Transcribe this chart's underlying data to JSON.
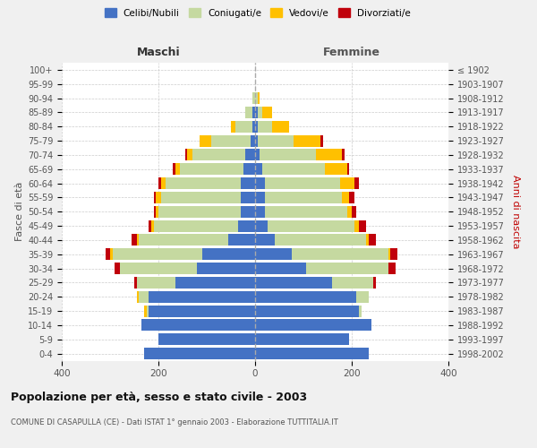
{
  "age_groups": [
    "0-4",
    "5-9",
    "10-14",
    "15-19",
    "20-24",
    "25-29",
    "30-34",
    "35-39",
    "40-44",
    "45-49",
    "50-54",
    "55-59",
    "60-64",
    "65-69",
    "70-74",
    "75-79",
    "80-84",
    "85-89",
    "90-94",
    "95-99",
    "100+"
  ],
  "birth_years": [
    "1998-2002",
    "1993-1997",
    "1988-1992",
    "1983-1987",
    "1978-1982",
    "1973-1977",
    "1968-1972",
    "1963-1967",
    "1958-1962",
    "1953-1957",
    "1948-1952",
    "1943-1947",
    "1938-1942",
    "1933-1937",
    "1928-1932",
    "1923-1927",
    "1918-1922",
    "1913-1917",
    "1908-1912",
    "1903-1907",
    "≤ 1902"
  ],
  "male": {
    "celibi": [
      230,
      200,
      235,
      220,
      220,
      165,
      120,
      110,
      55,
      35,
      30,
      30,
      30,
      25,
      20,
      10,
      5,
      5,
      0,
      0,
      0
    ],
    "coniugati": [
      0,
      0,
      0,
      5,
      20,
      80,
      160,
      185,
      185,
      175,
      170,
      165,
      155,
      130,
      110,
      80,
      35,
      15,
      5,
      0,
      0
    ],
    "vedovi": [
      0,
      0,
      0,
      5,
      5,
      0,
      0,
      5,
      5,
      5,
      5,
      10,
      10,
      10,
      10,
      25,
      10,
      0,
      0,
      0,
      0
    ],
    "divorziati": [
      0,
      0,
      0,
      0,
      0,
      5,
      10,
      10,
      10,
      5,
      5,
      5,
      5,
      5,
      5,
      0,
      0,
      0,
      0,
      0,
      0
    ]
  },
  "female": {
    "nubili": [
      235,
      195,
      240,
      215,
      210,
      160,
      105,
      75,
      40,
      25,
      20,
      20,
      20,
      15,
      10,
      5,
      5,
      5,
      0,
      0,
      0
    ],
    "coniugate": [
      0,
      0,
      0,
      5,
      25,
      85,
      170,
      200,
      190,
      180,
      170,
      160,
      155,
      130,
      115,
      75,
      30,
      10,
      5,
      0,
      0
    ],
    "vedove": [
      0,
      0,
      0,
      0,
      0,
      0,
      0,
      5,
      5,
      10,
      10,
      15,
      30,
      45,
      55,
      55,
      35,
      20,
      5,
      0,
      0
    ],
    "divorziate": [
      0,
      0,
      0,
      0,
      0,
      5,
      15,
      15,
      15,
      15,
      10,
      10,
      10,
      5,
      5,
      5,
      0,
      0,
      0,
      0,
      0
    ]
  },
  "colors": {
    "celibi": "#4472c4",
    "coniugati": "#c5d9a0",
    "vedovi": "#ffc000",
    "divorziati": "#c0000b"
  },
  "xlim": 400,
  "title": "Popolazione per età, sesso e stato civile - 2003",
  "subtitle": "COMUNE DI CASAPULLA (CE) - Dati ISTAT 1° gennaio 2003 - Elaborazione TUTTITALIA.IT",
  "ylabel_left": "Fasce di età",
  "ylabel_right": "Anni di nascita",
  "xlabel_left": "Maschi",
  "xlabel_right": "Femmine",
  "bg_color": "#f0f0f0",
  "plot_bg": "#ffffff"
}
